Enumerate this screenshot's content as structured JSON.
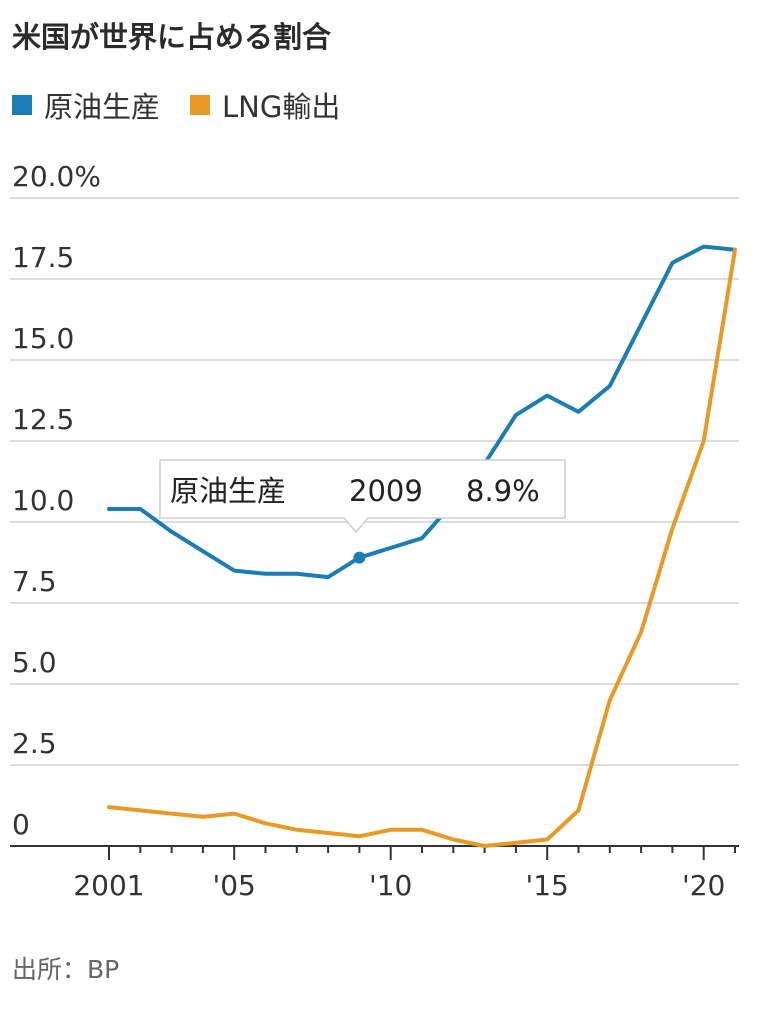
{
  "title": "米国が世界に占める割合",
  "source": "出所：BP",
  "colors": {
    "crude": "#1a7db5",
    "lng": "#e89a26",
    "grid": "#dddddd"
  },
  "tooltip": {
    "series": "原油生産",
    "year": "2009",
    "value": "8.9%"
  },
  "chart_data": {
    "type": "line",
    "title": "米国が世界に占める割合",
    "xlabel": "",
    "ylabel": "",
    "xlim": [
      2001,
      2021
    ],
    "ylim": [
      0,
      20
    ],
    "y_ticks": [
      0,
      2.5,
      5,
      7.5,
      10,
      12.5,
      15,
      17.5,
      20
    ],
    "y_tick_labels": [
      "0",
      "2.5",
      "5.0",
      "7.5",
      "10.0",
      "12.5",
      "15.0",
      "17.5",
      "20.0%"
    ],
    "x_tick_labels": [
      {
        "x": 2001,
        "label": "2001"
      },
      {
        "x": 2005,
        "label": "'05"
      },
      {
        "x": 2010,
        "label": "'10"
      },
      {
        "x": 2015,
        "label": "'15"
      },
      {
        "x": 2020,
        "label": "'20"
      }
    ],
    "legend_position": "top-left",
    "grid": true,
    "x": [
      2001,
      2002,
      2003,
      2004,
      2005,
      2006,
      2007,
      2008,
      2009,
      2010,
      2011,
      2012,
      2013,
      2014,
      2015,
      2016,
      2017,
      2018,
      2019,
      2020,
      2021
    ],
    "series": [
      {
        "name": "原油生産",
        "color": "#1a7db5",
        "values": [
          10.4,
          10.4,
          9.7,
          9.1,
          8.5,
          8.4,
          8.4,
          8.3,
          8.9,
          9.2,
          9.5,
          10.6,
          11.8,
          13.3,
          13.9,
          13.4,
          14.2,
          16.1,
          18.0,
          18.5,
          18.4
        ]
      },
      {
        "name": "LNG輸出",
        "color": "#e89a26",
        "values": [
          1.2,
          1.1,
          1.0,
          0.9,
          1.0,
          0.7,
          0.5,
          0.4,
          0.3,
          0.5,
          0.5,
          0.2,
          0.0,
          0.1,
          0.2,
          1.1,
          4.5,
          6.6,
          9.8,
          12.5,
          18.4
        ]
      }
    ]
  }
}
